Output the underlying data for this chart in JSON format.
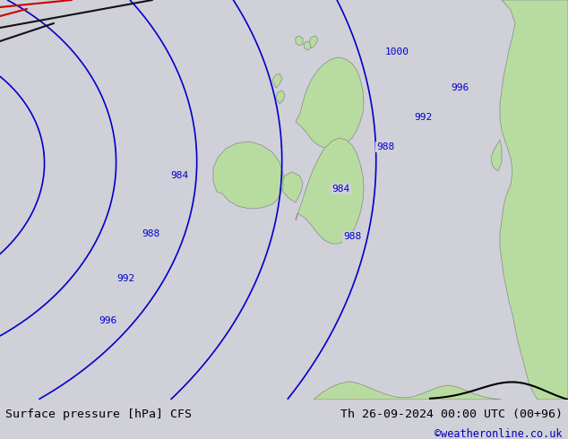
{
  "title_left": "Surface pressure [hPa] CFS",
  "title_right": "Th 26-09-2024 00:00 UTC (00+96)",
  "credit": "©weatheronline.co.uk",
  "bg_color": "#d0d0d8",
  "land_color": "#b8dca0",
  "land_edge_color": "#888888",
  "isobar_color": "#0000cc",
  "red_line_color": "#cc0000",
  "black_line_color": "#111111",
  "credit_color": "#0000bb",
  "bottom_bg": "#ffffff",
  "figsize": [
    6.34,
    4.9
  ],
  "dpi": 100,
  "isobar_lw": 1.2,
  "front_lw": 1.5
}
